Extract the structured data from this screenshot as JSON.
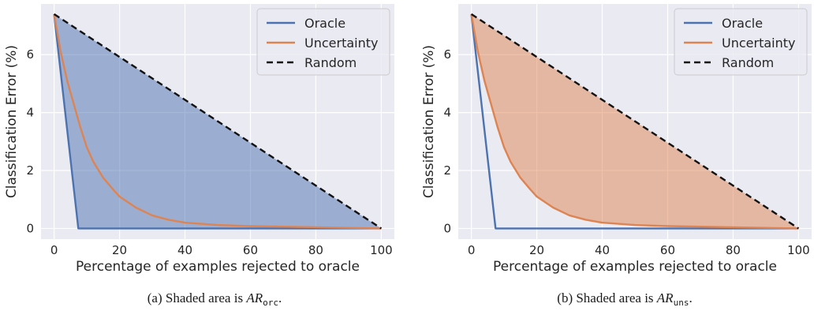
{
  "chart_data": [
    {
      "type": "line",
      "shaded_series": "Oracle",
      "caption": {
        "prefix": "(a)  Shaded area is ",
        "math": "AR",
        "sub": "orc",
        "suffix": "."
      },
      "xlabel": "Percentage of examples rejected to oracle",
      "ylabel": "Classification Error (%)",
      "xlim": [
        -4,
        104
      ],
      "ylim": [
        -0.37,
        7.75
      ],
      "xticks": [
        0,
        20,
        40,
        60,
        80,
        100
      ],
      "yticks": [
        0,
        2,
        4,
        6
      ],
      "grid": true,
      "legend": "top-right",
      "fill_color": "#4c72b0",
      "series": [
        {
          "name": "Oracle",
          "color": "#4c72b0",
          "dash": "solid",
          "x": [
            0,
            7.4,
            100
          ],
          "y": [
            7.4,
            0,
            0
          ]
        },
        {
          "name": "Uncertainty",
          "color": "#dd8452",
          "dash": "solid",
          "x": [
            0,
            2,
            4,
            6,
            8,
            10,
            12,
            15,
            18,
            20,
            25,
            30,
            35,
            40,
            50,
            60,
            70,
            80,
            90,
            100
          ],
          "y": [
            7.4,
            6.1,
            5.1,
            4.3,
            3.5,
            2.8,
            2.3,
            1.75,
            1.35,
            1.1,
            0.72,
            0.45,
            0.3,
            0.2,
            0.12,
            0.08,
            0.06,
            0.04,
            0.02,
            0
          ]
        },
        {
          "name": "Random",
          "color": "#111111",
          "dash": "dashed",
          "x": [
            0,
            100
          ],
          "y": [
            7.4,
            0
          ]
        }
      ]
    },
    {
      "type": "line",
      "shaded_series": "Uncertainty",
      "caption": {
        "prefix": "(b)  Shaded area is ",
        "math": "AR",
        "sub": "uns",
        "suffix": "."
      },
      "xlabel": "Percentage of examples rejected to oracle",
      "ylabel": "Classification Error (%)",
      "xlim": [
        -4,
        104
      ],
      "ylim": [
        -0.37,
        7.75
      ],
      "xticks": [
        0,
        20,
        40,
        60,
        80,
        100
      ],
      "yticks": [
        0,
        2,
        4,
        6
      ],
      "grid": true,
      "legend": "top-right",
      "fill_color": "#dd8452",
      "series": [
        {
          "name": "Oracle",
          "color": "#4c72b0",
          "dash": "solid",
          "x": [
            0,
            7.4,
            100
          ],
          "y": [
            7.4,
            0,
            0
          ]
        },
        {
          "name": "Uncertainty",
          "color": "#dd8452",
          "dash": "solid",
          "x": [
            0,
            2,
            4,
            6,
            8,
            10,
            12,
            15,
            18,
            20,
            25,
            30,
            35,
            40,
            50,
            60,
            70,
            80,
            90,
            100
          ],
          "y": [
            7.4,
            6.1,
            5.1,
            4.3,
            3.5,
            2.8,
            2.3,
            1.75,
            1.35,
            1.1,
            0.72,
            0.45,
            0.3,
            0.2,
            0.12,
            0.08,
            0.06,
            0.04,
            0.02,
            0
          ]
        },
        {
          "name": "Random",
          "color": "#111111",
          "dash": "dashed",
          "x": [
            0,
            100
          ],
          "y": [
            7.4,
            0
          ]
        }
      ]
    }
  ]
}
